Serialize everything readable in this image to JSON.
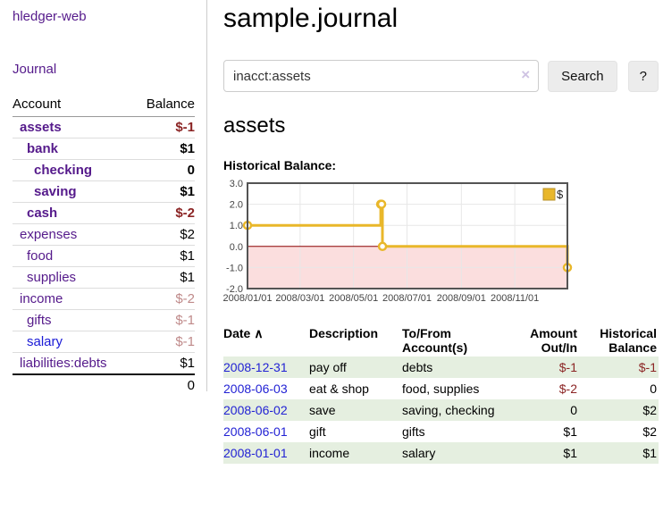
{
  "app": {
    "title": "hledger-web"
  },
  "sidebar": {
    "nav": {
      "journal_label": "Journal"
    },
    "accounts": {
      "headers": {
        "account": "Account",
        "balance": "Balance"
      },
      "rows": [
        {
          "account": "assets",
          "balance": "$-1"
        },
        {
          "account": "bank",
          "balance": "$1"
        },
        {
          "account": "checking",
          "balance": "0"
        },
        {
          "account": "saving",
          "balance": "$1"
        },
        {
          "account": "cash",
          "balance": "$-2"
        },
        {
          "account": "expenses",
          "balance": "$2"
        },
        {
          "account": "food",
          "balance": "$1"
        },
        {
          "account": "supplies",
          "balance": "$1"
        },
        {
          "account": "income",
          "balance": "$-2"
        },
        {
          "account": "gifts",
          "balance": "$-1"
        },
        {
          "account": "salary",
          "balance": "$-1"
        },
        {
          "account": "liabilities:debts",
          "balance": "$1"
        }
      ],
      "total": "0"
    }
  },
  "main": {
    "title": "sample.journal",
    "search": {
      "value": "inacct:assets",
      "clear_icon": "×",
      "button_label": "Search",
      "help_label": "?"
    },
    "account_heading": "assets",
    "register": {
      "sort_icon": "∧",
      "headers": {
        "date": "Date",
        "description": "Description",
        "accounts": "To/From Account(s)",
        "amount": "Amount Out/In",
        "balance": "Historical Balance"
      },
      "rows": [
        {
          "date": "2008-12-31",
          "description": "pay off",
          "accounts": "debts",
          "amount": "$-1",
          "balance": "$-1"
        },
        {
          "date": "2008-06-03",
          "description": "eat & shop",
          "accounts": "food, supplies",
          "amount": "$-2",
          "balance": "0"
        },
        {
          "date": "2008-06-02",
          "description": "save",
          "accounts": "saving, checking",
          "amount": "0",
          "balance": "$2"
        },
        {
          "date": "2008-06-01",
          "description": "gift",
          "accounts": "gifts",
          "amount": "$1",
          "balance": "$2"
        },
        {
          "date": "2008-01-01",
          "description": "income",
          "accounts": "salary",
          "amount": "$1",
          "balance": "$1"
        }
      ]
    }
  },
  "chart_data": {
    "type": "line",
    "title": "Historical Balance:",
    "step": true,
    "series": [
      {
        "name": "$",
        "x": [
          "2008-01-01",
          "2008-06-01",
          "2008-06-02",
          "2008-06-03",
          "2008-12-31"
        ],
        "values": [
          1,
          2,
          2,
          0,
          -1
        ]
      }
    ],
    "xlim": [
      "2008-01-01",
      "2008-12-31"
    ],
    "ylim": [
      -2,
      3
    ],
    "x_ticks": [
      "2008/01/01",
      "2008/03/01",
      "2008/05/01",
      "2008/07/01",
      "2008/09/01",
      "2008/11/01"
    ],
    "y_ticks": [
      3.0,
      2.0,
      1.0,
      0.0,
      -1.0,
      -2.0
    ],
    "grid": true,
    "legend_position": "top-right",
    "line_color": "#e9b72a",
    "marker_fill": "#ffffff",
    "negative_fill": "#fbdede",
    "zero_line_color": "#8b0000",
    "grid_color": "#e7e7e7",
    "border_color": "#545454"
  },
  "colors": {
    "link_purple": "#551a8b",
    "link_blue": "#1a1ad6",
    "date_link_blue": "#2222d4",
    "negative_strong": "#8b2424",
    "negative_soft": "#bf8a8a",
    "row_stripe_green": "#e5efe0",
    "chart_line_gold": "#e9b72a"
  }
}
